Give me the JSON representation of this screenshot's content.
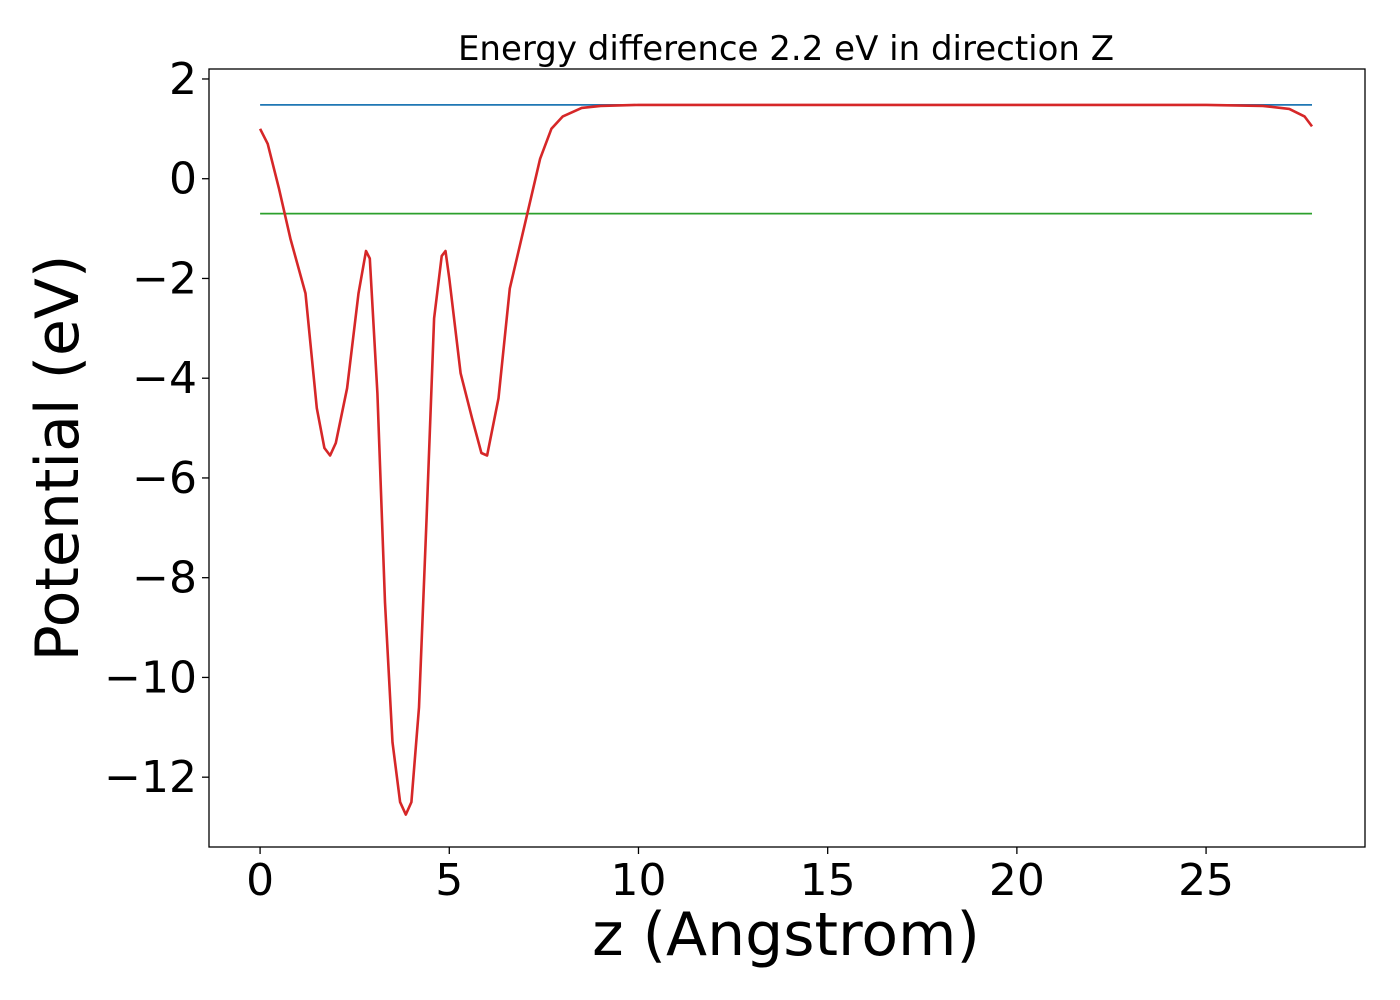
{
  "chart_data": {
    "type": "line",
    "title": "Energy difference 2.2 eV in direction Z",
    "xlabel": "z (Angstrom)",
    "ylabel": "Potential (eV)",
    "xlim": [
      -1.35,
      29.2
    ],
    "ylim": [
      -13.4,
      2.2
    ],
    "xticks": [
      0,
      5,
      10,
      15,
      20,
      25
    ],
    "yticks": [
      2,
      0,
      -2,
      -4,
      -6,
      -8,
      -10,
      -12
    ],
    "xtick_labels": [
      "0",
      "5",
      "10",
      "15",
      "20",
      "25"
    ],
    "ytick_labels": [
      "2",
      "0",
      "−2",
      "−4",
      "−6",
      "−8",
      "−10",
      "−12"
    ],
    "grid": false,
    "series": [
      {
        "color": "#1f77b4",
        "x": [
          0,
          27.8
        ],
        "y": [
          1.48,
          1.48
        ]
      },
      {
        "color": "#2ca02c",
        "x": [
          0,
          27.8
        ],
        "y": [
          -0.7,
          -0.7
        ]
      },
      {
        "color": "#d62728",
        "x": [
          0,
          0.2,
          0.5,
          0.8,
          1.2,
          1.5,
          1.7,
          1.85,
          2.0,
          2.3,
          2.6,
          2.8,
          2.9,
          3.1,
          3.3,
          3.5,
          3.7,
          3.85,
          4.0,
          4.2,
          4.4,
          4.6,
          4.8,
          4.9,
          5.0,
          5.3,
          5.6,
          5.85,
          6.0,
          6.3,
          6.6,
          7.0,
          7.4,
          7.7,
          8.0,
          8.5,
          9.0,
          10.0,
          12.0,
          15.0,
          20.0,
          25.0,
          26.5,
          27.2,
          27.6,
          27.8
        ],
        "y": [
          1.0,
          0.7,
          -0.2,
          -1.2,
          -2.3,
          -4.6,
          -5.4,
          -5.55,
          -5.3,
          -4.2,
          -2.3,
          -1.45,
          -1.6,
          -4.3,
          -8.5,
          -11.3,
          -12.5,
          -12.75,
          -12.5,
          -10.6,
          -6.8,
          -2.8,
          -1.55,
          -1.45,
          -2.0,
          -3.9,
          -4.8,
          -5.5,
          -5.55,
          -4.4,
          -2.2,
          -0.9,
          0.4,
          1.0,
          1.25,
          1.42,
          1.46,
          1.48,
          1.48,
          1.48,
          1.48,
          1.48,
          1.46,
          1.4,
          1.25,
          1.05
        ]
      }
    ]
  }
}
